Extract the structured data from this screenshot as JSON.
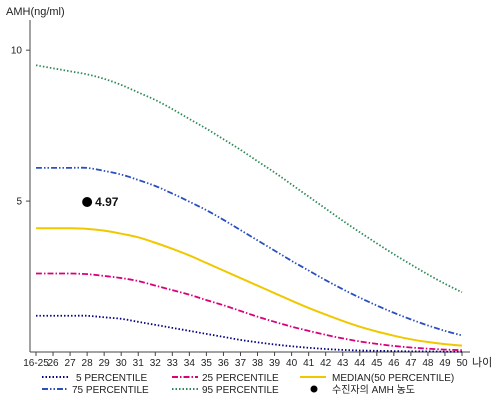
{
  "chart_data": {
    "type": "line",
    "ylabel": "AMH(ng/ml)",
    "xlabel": "나이",
    "ylim": [
      0,
      11
    ],
    "yticks": [
      5,
      10
    ],
    "categories": [
      "16-25",
      "26",
      "27",
      "28",
      "29",
      "30",
      "31",
      "32",
      "33",
      "34",
      "35",
      "36",
      "37",
      "38",
      "39",
      "40",
      "41",
      "42",
      "43",
      "44",
      "45",
      "46",
      "47",
      "48",
      "49",
      "50"
    ],
    "series": [
      {
        "name": "5 PERCENTILE",
        "color": "#000080",
        "dash": "1.5,2",
        "values": [
          1.2,
          1.2,
          1.2,
          1.2,
          1.15,
          1.1,
          1.0,
          0.9,
          0.8,
          0.7,
          0.6,
          0.5,
          0.4,
          0.32,
          0.25,
          0.19,
          0.14,
          0.1,
          0.07,
          0.05,
          0.04,
          0.03,
          0.02,
          0.02,
          0.01,
          0.01
        ]
      },
      {
        "name": "25 PERCENTILE",
        "color": "#d9007a",
        "dash": "6,2,1.5,2",
        "values": [
          2.6,
          2.6,
          2.6,
          2.58,
          2.52,
          2.45,
          2.35,
          2.2,
          2.05,
          1.9,
          1.72,
          1.55,
          1.36,
          1.17,
          1.0,
          0.84,
          0.7,
          0.57,
          0.45,
          0.35,
          0.27,
          0.2,
          0.15,
          0.11,
          0.08,
          0.06
        ]
      },
      {
        "name": "MEDIAN(50 PERCENTILE)",
        "color": "#f0c800",
        "dash": "",
        "values": [
          4.1,
          4.1,
          4.1,
          4.08,
          4.02,
          3.92,
          3.8,
          3.62,
          3.42,
          3.2,
          2.95,
          2.7,
          2.45,
          2.2,
          1.95,
          1.7,
          1.46,
          1.24,
          1.03,
          0.84,
          0.68,
          0.54,
          0.42,
          0.33,
          0.26,
          0.21
        ]
      },
      {
        "name": "75 PERCENTILE",
        "color": "#2a4fbf",
        "dash": "6,2,1.5,2,1.5,2",
        "values": [
          6.1,
          6.1,
          6.1,
          6.1,
          6.0,
          5.88,
          5.7,
          5.5,
          5.25,
          4.98,
          4.7,
          4.38,
          4.04,
          3.7,
          3.36,
          3.02,
          2.7,
          2.38,
          2.08,
          1.8,
          1.54,
          1.3,
          1.08,
          0.88,
          0.7,
          0.55
        ]
      },
      {
        "name": "95 PERCENTILE",
        "color": "#2e8b57",
        "dash": "1.5,2",
        "values": [
          9.5,
          9.4,
          9.3,
          9.2,
          9.05,
          8.85,
          8.6,
          8.35,
          8.05,
          7.72,
          7.4,
          7.05,
          6.7,
          6.32,
          5.95,
          5.55,
          5.15,
          4.75,
          4.35,
          3.97,
          3.6,
          3.24,
          2.9,
          2.57,
          2.26,
          1.98
        ]
      }
    ],
    "patient": {
      "name": "수진자의 AMH 농도",
      "label": "4.97",
      "x": "28",
      "y": 4.97,
      "color": "#000000"
    },
    "legend_order": [
      "5 PERCENTILE",
      "25 PERCENTILE",
      "MEDIAN(50 PERCENTILE)",
      "75 PERCENTILE",
      "95 PERCENTILE"
    ],
    "legend_placement": "bottom",
    "grid": false
  }
}
